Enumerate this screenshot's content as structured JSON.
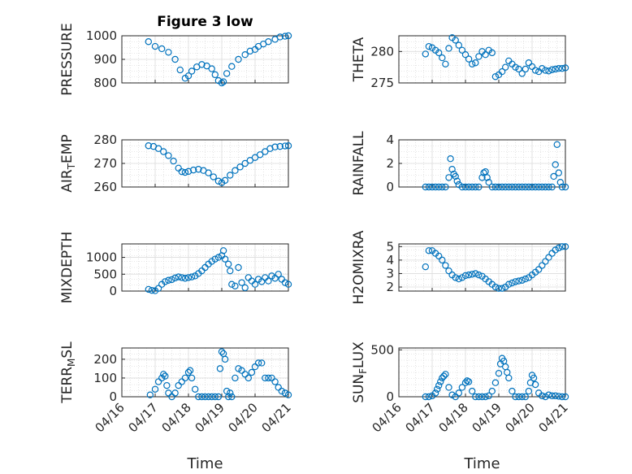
{
  "figure_title": "Figure 3 low",
  "x_axis_label": "Time",
  "x_tick_labels": [
    "04/16",
    "04/17",
    "04/18",
    "04/19",
    "04/20",
    "04/21"
  ],
  "marker_color": "#0072BD",
  "chart_data": [
    {
      "type": "scatter",
      "title": "Figure 3 low",
      "ylabel": "PRESSURE",
      "ylabel_sub": "",
      "ylim": [
        800,
        1000
      ],
      "yticks": [
        800,
        900,
        1000
      ],
      "xlabel": "",
      "grid": true,
      "series": [
        {
          "x": [
            0.8,
            1.0,
            1.2,
            1.4,
            1.6,
            1.75,
            1.9,
            2.0,
            2.1,
            2.25,
            2.4,
            2.55,
            2.7,
            2.8,
            2.9,
            3.0,
            3.05,
            3.15,
            3.3,
            3.5,
            3.7,
            3.85,
            4.0,
            4.1,
            4.25,
            4.4,
            4.6,
            4.75,
            4.9,
            5.0
          ],
          "y": [
            975,
            955,
            945,
            930,
            900,
            855,
            820,
            830,
            850,
            868,
            878,
            872,
            860,
            835,
            810,
            800,
            805,
            840,
            870,
            900,
            920,
            935,
            942,
            955,
            965,
            975,
            985,
            995,
            998,
            1000
          ]
        }
      ]
    },
    {
      "type": "scatter",
      "title": "",
      "ylabel": "THETA",
      "ylabel_sub": "",
      "ylim": [
        275,
        282.5
      ],
      "yticks": [
        275,
        280
      ],
      "xlabel": "",
      "grid": true,
      "series": [
        {
          "x": [
            0.8,
            0.9,
            1.0,
            1.1,
            1.2,
            1.3,
            1.4,
            1.5,
            1.6,
            1.7,
            1.8,
            1.9,
            2.0,
            2.1,
            2.2,
            2.3,
            2.4,
            2.5,
            2.6,
            2.7,
            2.8,
            2.9,
            3.0,
            3.1,
            3.2,
            3.3,
            3.4,
            3.5,
            3.6,
            3.7,
            3.8,
            3.9,
            4.0,
            4.1,
            4.2,
            4.3,
            4.4,
            4.5,
            4.6,
            4.7,
            4.8,
            4.9,
            5.0
          ],
          "y": [
            279.6,
            280.8,
            280.6,
            280.2,
            279.8,
            279.0,
            278.0,
            280.5,
            282.2,
            281.8,
            281.0,
            280.2,
            279.5,
            278.8,
            278.0,
            278.2,
            279.2,
            280.0,
            279.5,
            280.2,
            279.8,
            276.0,
            276.3,
            276.8,
            277.5,
            278.5,
            278.0,
            277.5,
            277.2,
            276.5,
            277.2,
            278.2,
            277.6,
            277.0,
            276.8,
            277.3,
            277.0,
            276.9,
            277.1,
            277.2,
            277.3,
            277.3,
            277.4
          ]
        }
      ]
    },
    {
      "type": "scatter",
      "title": "",
      "ylabel": "AIR",
      "ylabel_sub": "T",
      "ylabel_rest": "EMP",
      "ylim": [
        260,
        280
      ],
      "yticks": [
        260,
        270,
        280
      ],
      "xlabel": "",
      "grid": true,
      "series": [
        {
          "x": [
            0.8,
            0.95,
            1.1,
            1.25,
            1.4,
            1.55,
            1.7,
            1.8,
            1.9,
            2.0,
            2.15,
            2.3,
            2.45,
            2.6,
            2.75,
            2.9,
            3.0,
            3.1,
            3.25,
            3.4,
            3.55,
            3.7,
            3.85,
            4.0,
            4.15,
            4.3,
            4.45,
            4.6,
            4.75,
            4.9,
            5.0
          ],
          "y": [
            277.5,
            277.2,
            276.3,
            275.0,
            273.3,
            271.0,
            268.0,
            266.5,
            266.2,
            266.6,
            267.2,
            267.5,
            267.0,
            266.0,
            264.3,
            262.5,
            261.8,
            262.8,
            265.0,
            267.0,
            268.5,
            270.0,
            271.3,
            272.5,
            273.7,
            275.0,
            276.3,
            277.0,
            277.2,
            277.4,
            277.5
          ]
        }
      ]
    },
    {
      "type": "scatter",
      "title": "",
      "ylabel": "RAINFALL",
      "ylabel_sub": "",
      "ylim": [
        0,
        4
      ],
      "yticks": [
        0,
        2,
        4
      ],
      "xlabel": "",
      "grid": true,
      "series": [
        {
          "x": [
            0.8,
            0.9,
            1.0,
            1.1,
            1.2,
            1.3,
            1.4,
            1.5,
            1.55,
            1.6,
            1.65,
            1.7,
            1.75,
            1.8,
            1.9,
            2.0,
            2.1,
            2.2,
            2.3,
            2.4,
            2.5,
            2.55,
            2.6,
            2.65,
            2.7,
            2.8,
            2.9,
            3.0,
            3.1,
            3.2,
            3.3,
            3.4,
            3.5,
            3.6,
            3.7,
            3.8,
            3.9,
            4.0,
            4.1,
            4.2,
            4.3,
            4.4,
            4.5,
            4.6,
            4.65,
            4.7,
            4.75,
            4.8,
            4.85,
            4.9,
            5.0
          ],
          "y": [
            0,
            0,
            0,
            0,
            0,
            0,
            0,
            0.8,
            2.4,
            1.5,
            1.1,
            0.9,
            0.5,
            0.2,
            0,
            0,
            0,
            0,
            0,
            0,
            0.8,
            1.2,
            1.3,
            0.8,
            0.4,
            0,
            0,
            0,
            0,
            0,
            0,
            0,
            0,
            0,
            0,
            0,
            0,
            0,
            0,
            0,
            0,
            0,
            0,
            0,
            0.9,
            1.9,
            3.6,
            1.2,
            0.4,
            0,
            0
          ]
        }
      ]
    },
    {
      "type": "scatter",
      "title": "",
      "ylabel": "MIXDEPTH",
      "ylabel_sub": "",
      "ylim": [
        0,
        1400
      ],
      "yticks": [
        0,
        500,
        1000
      ],
      "xlabel": "",
      "grid": true,
      "series": [
        {
          "x": [
            0.8,
            0.9,
            1.0,
            1.1,
            1.2,
            1.3,
            1.4,
            1.5,
            1.6,
            1.7,
            1.8,
            1.9,
            2.0,
            2.1,
            2.2,
            2.3,
            2.4,
            2.5,
            2.6,
            2.7,
            2.8,
            2.9,
            3.0,
            3.05,
            3.1,
            3.2,
            3.25,
            3.3,
            3.4,
            3.5,
            3.6,
            3.7,
            3.8,
            3.9,
            4.0,
            4.1,
            4.2,
            4.3,
            4.4,
            4.5,
            4.6,
            4.7,
            4.8,
            4.9,
            5.0
          ],
          "y": [
            50,
            20,
            10,
            80,
            200,
            280,
            320,
            340,
            390,
            420,
            400,
            380,
            400,
            420,
            450,
            520,
            600,
            700,
            800,
            880,
            950,
            1000,
            1050,
            1200,
            950,
            800,
            600,
            200,
            150,
            700,
            250,
            100,
            400,
            300,
            200,
            350,
            280,
            400,
            300,
            450,
            380,
            500,
            350,
            250,
            200
          ]
        }
      ]
    },
    {
      "type": "scatter",
      "title": "",
      "ylabel": "H2OMIXRA",
      "ylabel_sub": "",
      "ylim": [
        1.7,
        5.2
      ],
      "yticks": [
        2,
        3,
        4,
        5
      ],
      "xlabel": "",
      "grid": true,
      "series": [
        {
          "x": [
            0.8,
            0.9,
            1.0,
            1.1,
            1.2,
            1.3,
            1.4,
            1.5,
            1.6,
            1.7,
            1.8,
            1.9,
            2.0,
            2.1,
            2.2,
            2.3,
            2.4,
            2.5,
            2.6,
            2.7,
            2.8,
            2.9,
            3.0,
            3.1,
            3.2,
            3.3,
            3.4,
            3.5,
            3.6,
            3.7,
            3.8,
            3.9,
            4.0,
            4.1,
            4.2,
            4.3,
            4.4,
            4.5,
            4.6,
            4.7,
            4.8,
            4.9,
            5.0
          ],
          "y": [
            3.5,
            4.7,
            4.7,
            4.5,
            4.3,
            4.0,
            3.6,
            3.2,
            2.9,
            2.7,
            2.6,
            2.7,
            2.85,
            2.9,
            2.95,
            3.0,
            2.9,
            2.8,
            2.6,
            2.4,
            2.2,
            2.0,
            1.9,
            1.9,
            2.0,
            2.2,
            2.3,
            2.4,
            2.45,
            2.5,
            2.6,
            2.7,
            2.9,
            3.1,
            3.3,
            3.6,
            3.9,
            4.2,
            4.5,
            4.75,
            4.9,
            5.0,
            5.0
          ]
        }
      ]
    },
    {
      "type": "scatter",
      "title": "",
      "ylabel": "TERR",
      "ylabel_sub": "M",
      "ylabel_rest": "SL",
      "ylim": [
        0,
        260
      ],
      "yticks": [
        0,
        100,
        200
      ],
      "xlabel": "Time",
      "grid": true,
      "series": [
        {
          "x": [
            0.85,
            1.0,
            1.1,
            1.2,
            1.25,
            1.3,
            1.35,
            1.4,
            1.5,
            1.6,
            1.7,
            1.8,
            1.9,
            2.0,
            2.05,
            2.1,
            2.2,
            2.3,
            2.4,
            2.5,
            2.6,
            2.7,
            2.8,
            2.9,
            2.95,
            3.0,
            3.05,
            3.1,
            3.15,
            3.2,
            3.25,
            3.3,
            3.4,
            3.5,
            3.6,
            3.7,
            3.8,
            3.9,
            4.0,
            4.1,
            4.2,
            4.3,
            4.4,
            4.5,
            4.6,
            4.7,
            4.8,
            4.9,
            5.0
          ],
          "y": [
            10,
            40,
            80,
            100,
            120,
            110,
            60,
            20,
            0,
            20,
            60,
            80,
            100,
            130,
            140,
            100,
            40,
            0,
            0,
            0,
            0,
            0,
            0,
            0,
            150,
            240,
            230,
            200,
            30,
            0,
            20,
            0,
            100,
            150,
            140,
            120,
            100,
            130,
            160,
            180,
            180,
            100,
            100,
            100,
            80,
            50,
            30,
            20,
            10
          ]
        }
      ]
    },
    {
      "type": "scatter",
      "title": "",
      "ylabel": "SUN",
      "ylabel_sub": "F",
      "ylabel_rest": "LUX",
      "ylim": [
        0,
        520
      ],
      "yticks": [
        0,
        500
      ],
      "xlabel": "Time",
      "grid": true,
      "series": [
        {
          "x": [
            0.8,
            0.9,
            1.0,
            1.1,
            1.15,
            1.2,
            1.25,
            1.3,
            1.35,
            1.4,
            1.5,
            1.6,
            1.7,
            1.8,
            1.9,
            2.0,
            2.05,
            2.1,
            2.2,
            2.3,
            2.4,
            2.5,
            2.6,
            2.7,
            2.8,
            2.9,
            3.0,
            3.05,
            3.1,
            3.15,
            3.2,
            3.25,
            3.3,
            3.4,
            3.5,
            3.6,
            3.7,
            3.8,
            3.9,
            3.95,
            4.0,
            4.05,
            4.1,
            4.2,
            4.3,
            4.4,
            4.5,
            4.6,
            4.7,
            4.8,
            4.9,
            5.0
          ],
          "y": [
            0,
            0,
            10,
            40,
            80,
            120,
            160,
            200,
            220,
            240,
            100,
            20,
            0,
            40,
            100,
            150,
            170,
            160,
            60,
            0,
            0,
            0,
            0,
            10,
            60,
            150,
            250,
            350,
            410,
            380,
            320,
            260,
            200,
            60,
            0,
            0,
            0,
            0,
            60,
            150,
            230,
            200,
            130,
            40,
            10,
            0,
            20,
            10,
            10,
            5,
            0,
            0
          ]
        }
      ]
    }
  ]
}
